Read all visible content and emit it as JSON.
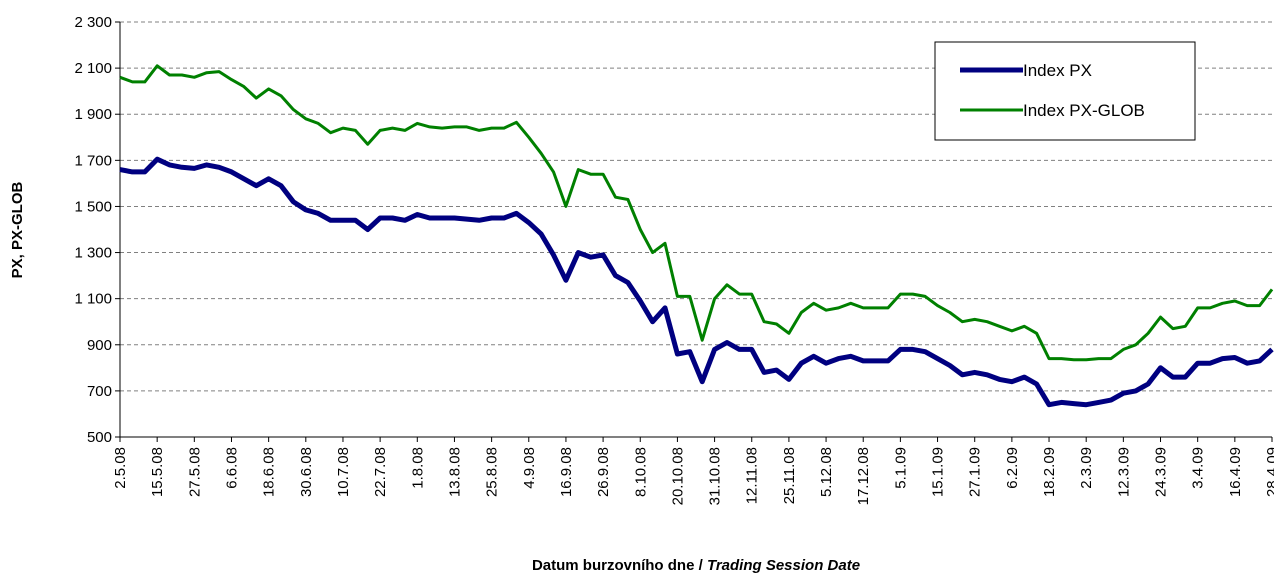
{
  "chart_data": {
    "type": "line",
    "ylabel": "PX, PX-GLOB",
    "xlabel": "Datum burzovního dne / ",
    "xlabel_en": "Trading Session Date",
    "categories": [
      "2.5.08",
      null,
      null,
      "15.5.08",
      null,
      null,
      "27.5.08",
      null,
      null,
      "6.6.08",
      null,
      null,
      "18.6.08",
      null,
      null,
      "30.6.08",
      null,
      null,
      "10.7.08",
      null,
      null,
      "22.7.08",
      null,
      null,
      "1.8.08",
      null,
      null,
      "13.8.08",
      null,
      null,
      "25.8.08",
      null,
      null,
      "4.9.08",
      null,
      null,
      "16.9.08",
      null,
      null,
      "26.9.08",
      null,
      null,
      "8.10.08",
      null,
      null,
      "20.10.08",
      null,
      null,
      "31.10.08",
      null,
      null,
      "12.11.08",
      null,
      null,
      "25.11.08",
      null,
      null,
      "5.12.08",
      null,
      null,
      "17.12.08",
      null,
      null,
      "5.1.09",
      null,
      null,
      "15.1.09",
      null,
      null,
      "27.1.09",
      null,
      null,
      "6.2.09",
      null,
      null,
      "18.2.09",
      null,
      null,
      "2.3.09",
      null,
      null,
      "12.3.09",
      null,
      null,
      "24.3.09",
      null,
      null,
      "3.4.09",
      null,
      null,
      "16.4.09",
      null,
      null,
      "28.4.09"
    ],
    "series": [
      {
        "name": "Index PX",
        "color": "#000080",
        "values": [
          1660,
          1650,
          1650,
          1705,
          1680,
          1670,
          1665,
          1680,
          1670,
          1650,
          1620,
          1590,
          1620,
          1590,
          1520,
          1485,
          1470,
          1440,
          1440,
          1440,
          1400,
          1450,
          1450,
          1440,
          1465,
          1450,
          1450,
          1450,
          1445,
          1440,
          1450,
          1450,
          1470,
          1430,
          1380,
          1290,
          1180,
          1300,
          1280,
          1290,
          1200,
          1170,
          1090,
          1000,
          1060,
          860,
          870,
          740,
          880,
          910,
          880,
          880,
          780,
          790,
          750,
          820,
          850,
          820,
          840,
          850,
          830,
          830,
          830,
          880,
          880,
          870,
          840,
          810,
          770,
          780,
          770,
          750,
          740,
          760,
          730,
          640,
          650,
          645,
          640,
          650,
          660,
          690,
          700,
          730,
          800,
          760,
          760,
          820,
          820,
          840,
          845,
          820,
          830,
          880
        ]
      },
      {
        "name": "Index PX-GLOB",
        "color": "#008000",
        "values": [
          2060,
          2040,
          2040,
          2110,
          2070,
          2070,
          2060,
          2080,
          2085,
          2050,
          2020,
          1970,
          2010,
          1980,
          1920,
          1880,
          1860,
          1820,
          1840,
          1830,
          1770,
          1830,
          1840,
          1830,
          1860,
          1845,
          1840,
          1845,
          1845,
          1830,
          1840,
          1840,
          1865,
          1800,
          1730,
          1650,
          1500,
          1660,
          1640,
          1640,
          1540,
          1530,
          1400,
          1300,
          1340,
          1110,
          1110,
          920,
          1100,
          1160,
          1120,
          1120,
          1000,
          990,
          950,
          1040,
          1080,
          1050,
          1060,
          1080,
          1060,
          1060,
          1060,
          1120,
          1120,
          1110,
          1070,
          1040,
          1000,
          1010,
          1000,
          980,
          960,
          980,
          950,
          840,
          840,
          835,
          835,
          840,
          840,
          880,
          900,
          950,
          1020,
          970,
          980,
          1060,
          1060,
          1080,
          1090,
          1070,
          1070,
          1140
        ]
      }
    ],
    "ylim": [
      500,
      2300
    ],
    "yticks": [
      {
        "value": 500,
        "label": "500"
      },
      {
        "value": 700,
        "label": "700"
      },
      {
        "value": 900,
        "label": "900"
      },
      {
        "value": 1100,
        "label": "1 100"
      },
      {
        "value": 1300,
        "label": "1 300"
      },
      {
        "value": 1500,
        "label": "1 500"
      },
      {
        "value": 1700,
        "label": "1 700"
      },
      {
        "value": 1900,
        "label": "1 900"
      },
      {
        "value": 2100,
        "label": "2 100"
      },
      {
        "value": 2300,
        "label": "2 300"
      }
    ],
    "grid": true,
    "legend": "top-right"
  }
}
